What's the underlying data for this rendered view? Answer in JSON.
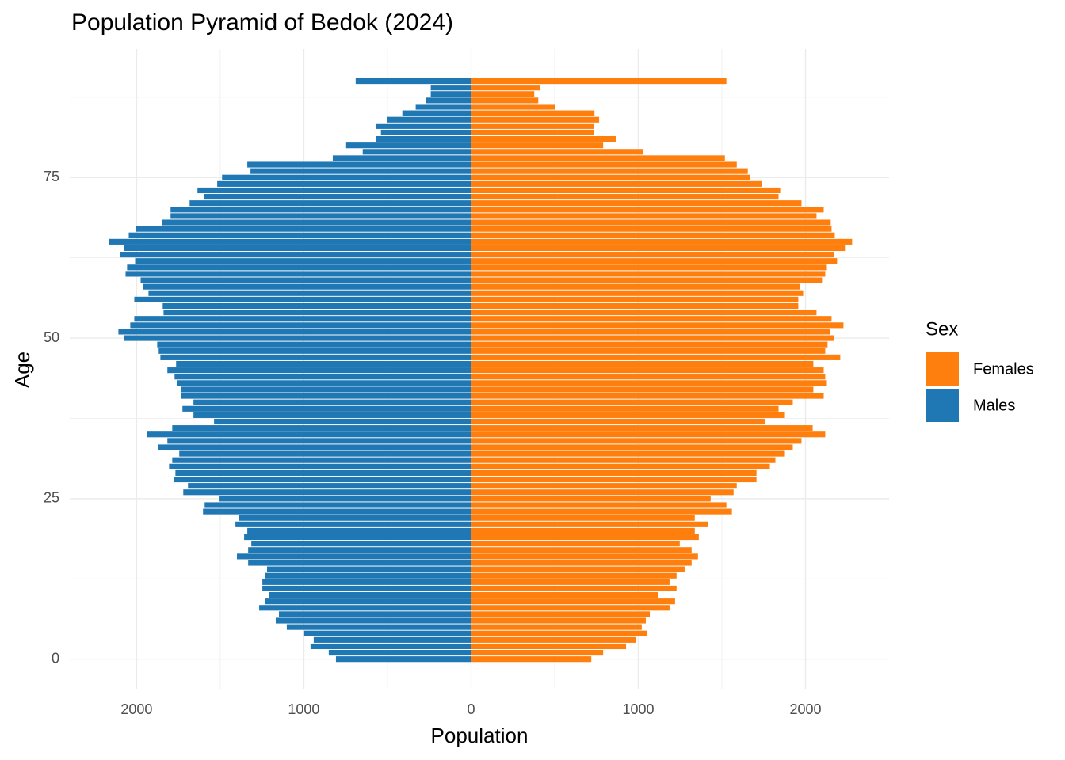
{
  "chart_data": {
    "type": "bar",
    "orientation": "horizontal",
    "title": "Population Pyramid of Bedok (2024)",
    "x_label": "Population",
    "y_label": "Age",
    "legend_title": "Sex",
    "y": [
      0,
      1,
      2,
      3,
      4,
      5,
      6,
      7,
      8,
      9,
      10,
      11,
      12,
      13,
      14,
      15,
      16,
      17,
      18,
      19,
      20,
      21,
      22,
      23,
      24,
      25,
      26,
      27,
      28,
      29,
      30,
      31,
      32,
      33,
      34,
      35,
      36,
      37,
      38,
      39,
      40,
      41,
      42,
      43,
      44,
      45,
      46,
      47,
      48,
      49,
      50,
      51,
      52,
      53,
      54,
      55,
      56,
      57,
      58,
      59,
      60,
      61,
      62,
      63,
      64,
      65,
      66,
      67,
      68,
      69,
      70,
      71,
      72,
      73,
      74,
      75,
      76,
      77,
      78,
      79,
      80,
      81,
      82,
      83,
      84,
      85,
      86,
      87,
      88,
      89,
      90
    ],
    "series": [
      {
        "name": "Females",
        "color": "#ff7f0e",
        "values": [
          719,
          790,
          927,
          988,
          1050,
          1021,
          1045,
          1069,
          1187,
          1220,
          1121,
          1229,
          1187,
          1229,
          1277,
          1319,
          1357,
          1319,
          1248,
          1362,
          1338,
          1418,
          1338,
          1560,
          1527,
          1433,
          1570,
          1589,
          1707,
          1707,
          1787,
          1820,
          1877,
          1924,
          1976,
          2118,
          2043,
          1759,
          1877,
          1839,
          1924,
          2109,
          2047,
          2128,
          2118,
          2109,
          2047,
          2208,
          2118,
          2132,
          2170,
          2147,
          2227,
          2156,
          2066,
          1957,
          1957,
          1986,
          1967,
          2099,
          2118,
          2128,
          2189,
          2170,
          2236,
          2279,
          2175,
          2156,
          2151,
          2066,
          2109,
          1976,
          1839,
          1849,
          1740,
          1669,
          1655,
          1589,
          1518,
          1031,
          790,
          865,
          733,
          733,
          766,
          738,
          501,
          402,
          378,
          411,
          1527
        ]
      },
      {
        "name": "Males",
        "color": "#1f77b4",
        "values": [
          -808,
          -851,
          -960,
          -941,
          -998,
          -1102,
          -1168,
          -1149,
          -1267,
          -1234,
          -1210,
          -1248,
          -1248,
          -1234,
          -1220,
          -1333,
          -1400,
          -1333,
          -1314,
          -1357,
          -1338,
          -1409,
          -1390,
          -1603,
          -1593,
          -1504,
          -1721,
          -1693,
          -1778,
          -1768,
          -1806,
          -1787,
          -1745,
          -1872,
          -1816,
          -1939,
          -1787,
          -1537,
          -1660,
          -1726,
          -1660,
          -1735,
          -1735,
          -1759,
          -1773,
          -1816,
          -1764,
          -1858,
          -1868,
          -1877,
          -2076,
          -2109,
          -2038,
          -2014,
          -1839,
          -1844,
          -2014,
          -1929,
          -1962,
          -1976,
          -2066,
          -2057,
          -2009,
          -2099,
          -2076,
          -2165,
          -2047,
          -2005,
          -1849,
          -1797,
          -1797,
          -1683,
          -1598,
          -1636,
          -1518,
          -1489,
          -1319,
          -1338,
          -827,
          -648,
          -747,
          -567,
          -539,
          -567,
          -501,
          -411,
          -331,
          -270,
          -241,
          -241,
          -690
        ]
      }
    ],
    "xlim": [
      -2400,
      2500
    ],
    "xticks": [
      {
        "value": -2000,
        "label": "2000"
      },
      {
        "value": -1000,
        "label": "1000"
      },
      0,
      1000,
      2000
    ],
    "xminorticks": [
      -1500,
      -500,
      500,
      1500
    ],
    "ylim": [
      -4.6,
      95
    ],
    "yticks": [
      0,
      25,
      50,
      75
    ],
    "yminorticks": [
      12.5,
      37.5,
      62.5,
      87.5
    ],
    "grid": true,
    "legend_position": "right"
  }
}
